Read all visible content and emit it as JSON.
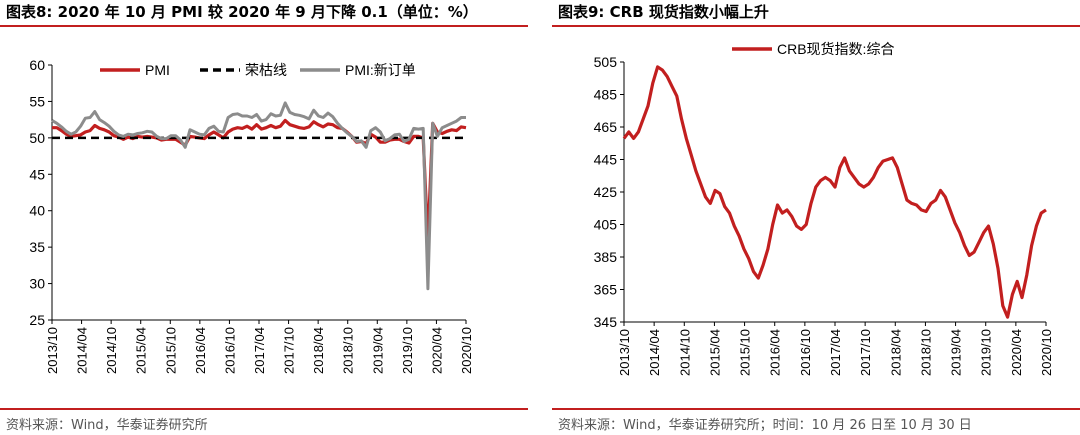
{
  "left": {
    "caption": "图表8:  2020 年 10 月 PMI 较 2020 年 9 月下降 0.1（单位：%）",
    "source": "资料来源：Wind，华泰证券研究所"
  },
  "right": {
    "caption": "图表9:  CRB 现货指数小幅上升",
    "source": "资料来源：Wind，华泰证券研究所；时间：10 月 26 日至 10 月 30 日"
  },
  "colors": {
    "red": "#c21f1f",
    "gray": "#8c8c8c",
    "black": "#000000",
    "rule": "#c21f1f"
  },
  "chart_data": [
    {
      "type": "line",
      "x_labels": [
        "2013/10",
        "2014/04",
        "2014/10",
        "2015/04",
        "2015/10",
        "2016/04",
        "2016/10",
        "2017/04",
        "2017/10",
        "2018/04",
        "2018/10",
        "2019/04",
        "2019/10",
        "2020/04",
        "2020/10"
      ],
      "ylim": [
        25,
        60
      ],
      "yticks": [
        25,
        30,
        35,
        40,
        45,
        50,
        55,
        60
      ],
      "legend_position": "top",
      "grid": false,
      "series": [
        {
          "name": "PMI",
          "color": "#c21f1f",
          "style": "solid",
          "values": [
            51.4,
            51.4,
            51.0,
            50.5,
            50.2,
            50.3,
            50.4,
            50.8,
            51.0,
            51.7,
            51.3,
            51.1,
            50.8,
            50.3,
            50.1,
            49.8,
            50.1,
            49.9,
            50.2,
            50.1,
            50.2,
            50.1,
            50.0,
            49.7,
            49.8,
            49.8,
            49.8,
            49.4,
            49.0,
            50.2,
            50.1,
            50.0,
            49.9,
            50.4,
            50.8,
            50.4,
            50.0,
            50.8,
            51.2,
            51.4,
            51.3,
            51.6,
            51.2,
            51.8,
            51.2,
            51.4,
            51.7,
            51.4,
            51.6,
            52.4,
            51.8,
            51.6,
            51.4,
            51.3,
            51.5,
            52.2,
            51.8,
            51.5,
            51.9,
            51.8,
            51.4,
            51.3,
            50.8,
            50.2,
            49.4,
            49.5,
            49.2,
            50.5,
            50.1,
            49.4,
            49.4,
            49.7,
            49.8,
            49.8,
            49.5,
            49.3,
            50.2,
            50.2,
            50.0,
            35.7,
            52.0,
            50.8,
            50.6,
            50.9,
            51.1,
            51.0,
            51.5,
            51.4
          ]
        },
        {
          "name": "荣枯线",
          "color": "#000000",
          "style": "dashed",
          "constant": 50
        },
        {
          "name": "PMI:新订单",
          "color": "#8c8c8c",
          "style": "solid",
          "values": [
            52.4,
            52.0,
            51.5,
            50.9,
            50.5,
            50.8,
            51.6,
            52.7,
            52.8,
            53.6,
            52.5,
            52.1,
            51.6,
            50.9,
            50.4,
            50.2,
            50.5,
            50.4,
            50.6,
            50.7,
            50.9,
            50.8,
            50.2,
            49.9,
            49.9,
            50.3,
            50.3,
            49.7,
            48.7,
            51.1,
            50.8,
            50.5,
            50.4,
            51.3,
            51.6,
            50.9,
            50.8,
            52.8,
            53.2,
            53.3,
            53.0,
            53.0,
            52.8,
            53.2,
            52.3,
            52.5,
            53.3,
            53.0,
            53.1,
            54.8,
            53.5,
            53.2,
            53.1,
            52.9,
            52.6,
            53.8,
            53.0,
            52.8,
            53.4,
            52.9,
            52.0,
            51.3,
            50.7,
            50.2,
            49.5,
            49.6,
            48.7,
            51.0,
            51.4,
            50.8,
            49.6,
            49.9,
            50.4,
            50.5,
            49.5,
            49.8,
            51.3,
            51.2,
            51.3,
            29.3,
            52.0,
            50.2,
            51.4,
            51.7,
            52.0,
            52.3,
            52.8,
            52.8
          ]
        }
      ]
    },
    {
      "type": "line",
      "x_labels": [
        "2013/10",
        "2014/04",
        "2014/10",
        "2015/04",
        "2015/10",
        "2016/04",
        "2016/10",
        "2017/04",
        "2017/10",
        "2018/04",
        "2018/10",
        "2019/04",
        "2019/10",
        "2020/04",
        "2020/10"
      ],
      "ylim": [
        345,
        505
      ],
      "yticks": [
        345,
        365,
        385,
        405,
        425,
        445,
        465,
        485,
        505
      ],
      "legend_position": "top-center",
      "grid": false,
      "series": [
        {
          "name": "CRB现货指数:综合",
          "color": "#c21f1f",
          "style": "solid",
          "values": [
            458,
            462,
            458,
            462,
            470,
            478,
            492,
            502,
            500,
            496,
            490,
            484,
            470,
            458,
            448,
            438,
            430,
            422,
            418,
            426,
            424,
            416,
            412,
            404,
            398,
            390,
            384,
            376,
            372,
            380,
            390,
            405,
            417,
            412,
            414,
            410,
            404,
            402,
            405,
            418,
            428,
            432,
            434,
            432,
            428,
            440,
            446,
            438,
            434,
            430,
            428,
            430,
            434,
            440,
            444,
            445,
            446,
            440,
            430,
            420,
            418,
            417,
            414,
            413,
            418,
            420,
            426,
            422,
            414,
            406,
            400,
            392,
            386,
            388,
            394,
            400,
            404,
            393,
            378,
            355,
            348,
            362,
            370,
            360,
            374,
            392,
            404,
            412,
            414
          ]
        }
      ]
    }
  ]
}
